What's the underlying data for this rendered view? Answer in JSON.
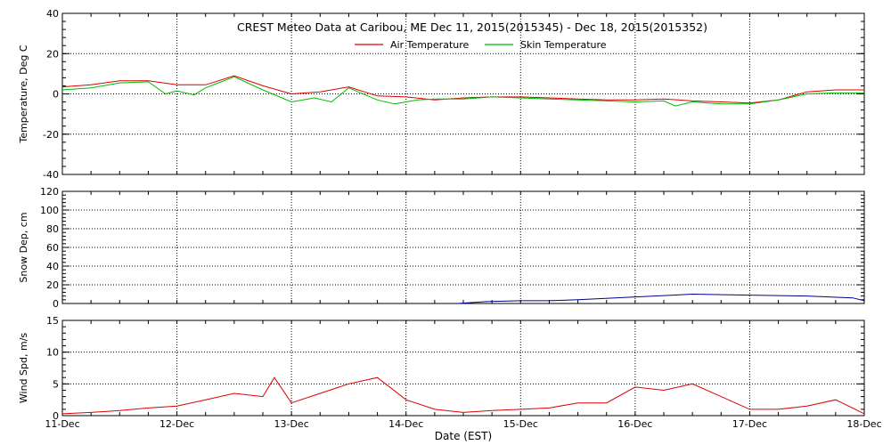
{
  "chart_data": {
    "title": "CREST Meteo Data at Caribou, ME   Dec 11, 2015(2015345) - Dec 18, 2015(2015352)",
    "xlabel": "Date (EST)",
    "x_tick_labels": [
      "11-Dec",
      "12-Dec",
      "13-Dec",
      "14-Dec",
      "15-Dec",
      "16-Dec",
      "17-Dec",
      "18-Dec"
    ],
    "x_range_days": [
      0,
      7
    ],
    "grid": true,
    "legend_position": "top-center",
    "panels": [
      {
        "type": "line",
        "ylabel": "Temperature, Deg C",
        "ylim": [
          -40,
          40
        ],
        "yticks": [
          -40,
          -20,
          0,
          20,
          40
        ],
        "series": [
          {
            "name": "Air Temperature",
            "color": "#dd0000",
            "x": [
              0,
              0.25,
              0.5,
              0.75,
              1.0,
              1.25,
              1.5,
              1.75,
              2.0,
              2.25,
              2.5,
              2.75,
              3.0,
              3.25,
              3.5,
              3.75,
              4.0,
              4.25,
              4.5,
              4.75,
              5.0,
              5.25,
              5.5,
              5.75,
              6.0,
              6.25,
              6.5,
              6.75,
              7.0
            ],
            "values": [
              3.5,
              4.5,
              6.5,
              6.5,
              4.5,
              4.5,
              9,
              4,
              0,
              1,
              3.5,
              -1,
              -1.5,
              -3,
              -2,
              -1.5,
              -1.5,
              -2,
              -2.5,
              -3,
              -3,
              -2.5,
              -3.5,
              -4,
              -4.5,
              -3,
              1,
              2,
              2
            ]
          },
          {
            "name": "Skin Temperature",
            "color": "#00bb00",
            "x": [
              0,
              0.25,
              0.5,
              0.75,
              0.9,
              1.0,
              1.15,
              1.25,
              1.5,
              1.75,
              2.0,
              2.2,
              2.35,
              2.5,
              2.75,
              2.9,
              3.1,
              3.25,
              3.5,
              3.75,
              4.0,
              4.25,
              4.5,
              4.75,
              5.0,
              5.25,
              5.35,
              5.5,
              5.75,
              6.0,
              6.25,
              6.5,
              6.75,
              7.0
            ],
            "values": [
              2,
              3,
              5.5,
              6,
              0,
              1.5,
              -0.5,
              3,
              8.5,
              2,
              -4,
              -2,
              -4,
              3,
              -3,
              -5,
              -3,
              -2.5,
              -2.5,
              -1.5,
              -2,
              -2.5,
              -3,
              -3.5,
              -4,
              -3.5,
              -6,
              -4,
              -5,
              -5,
              -3,
              0,
              0.5,
              0.5
            ]
          }
        ]
      },
      {
        "type": "line",
        "ylabel": "Snow Dep, cm",
        "ylim": [
          0,
          120
        ],
        "yticks": [
          0,
          20,
          40,
          60,
          80,
          100,
          120
        ],
        "series": [
          {
            "name": "",
            "color": "#000088",
            "x": [
              3.45,
              3.7,
              4.0,
              4.25,
              4.5,
              5.5,
              6.0,
              6.5,
              6.9,
              7.0
            ],
            "values": [
              0,
              2,
              3,
              3,
              4,
              10,
              9,
              8,
              6,
              3
            ]
          }
        ]
      },
      {
        "type": "line",
        "ylabel": "Wind Spd, m/s",
        "ylim": [
          0,
          15
        ],
        "yticks": [
          0,
          5,
          10,
          15
        ],
        "series": [
          {
            "name": "",
            "color": "#dd0000",
            "x": [
              0,
              0.25,
              0.5,
              0.75,
              1.0,
              1.25,
              1.5,
              1.75,
              1.85,
              2.0,
              2.25,
              2.5,
              2.75,
              3.0,
              3.25,
              3.5,
              3.75,
              4.0,
              4.25,
              4.5,
              4.75,
              5.0,
              5.25,
              5.5,
              5.75,
              6.0,
              6.25,
              6.5,
              6.75,
              7.0
            ],
            "values": [
              0.3,
              0.5,
              0.8,
              1.2,
              1.5,
              2.5,
              3.5,
              3.0,
              6.0,
              2.0,
              3.5,
              5.0,
              6.0,
              2.5,
              1.0,
              0.5,
              0.8,
              1.0,
              1.2,
              2.0,
              2.0,
              4.5,
              4.0,
              5.0,
              3.0,
              1.0,
              1.0,
              1.5,
              2.5,
              0.3
            ]
          }
        ]
      }
    ]
  }
}
